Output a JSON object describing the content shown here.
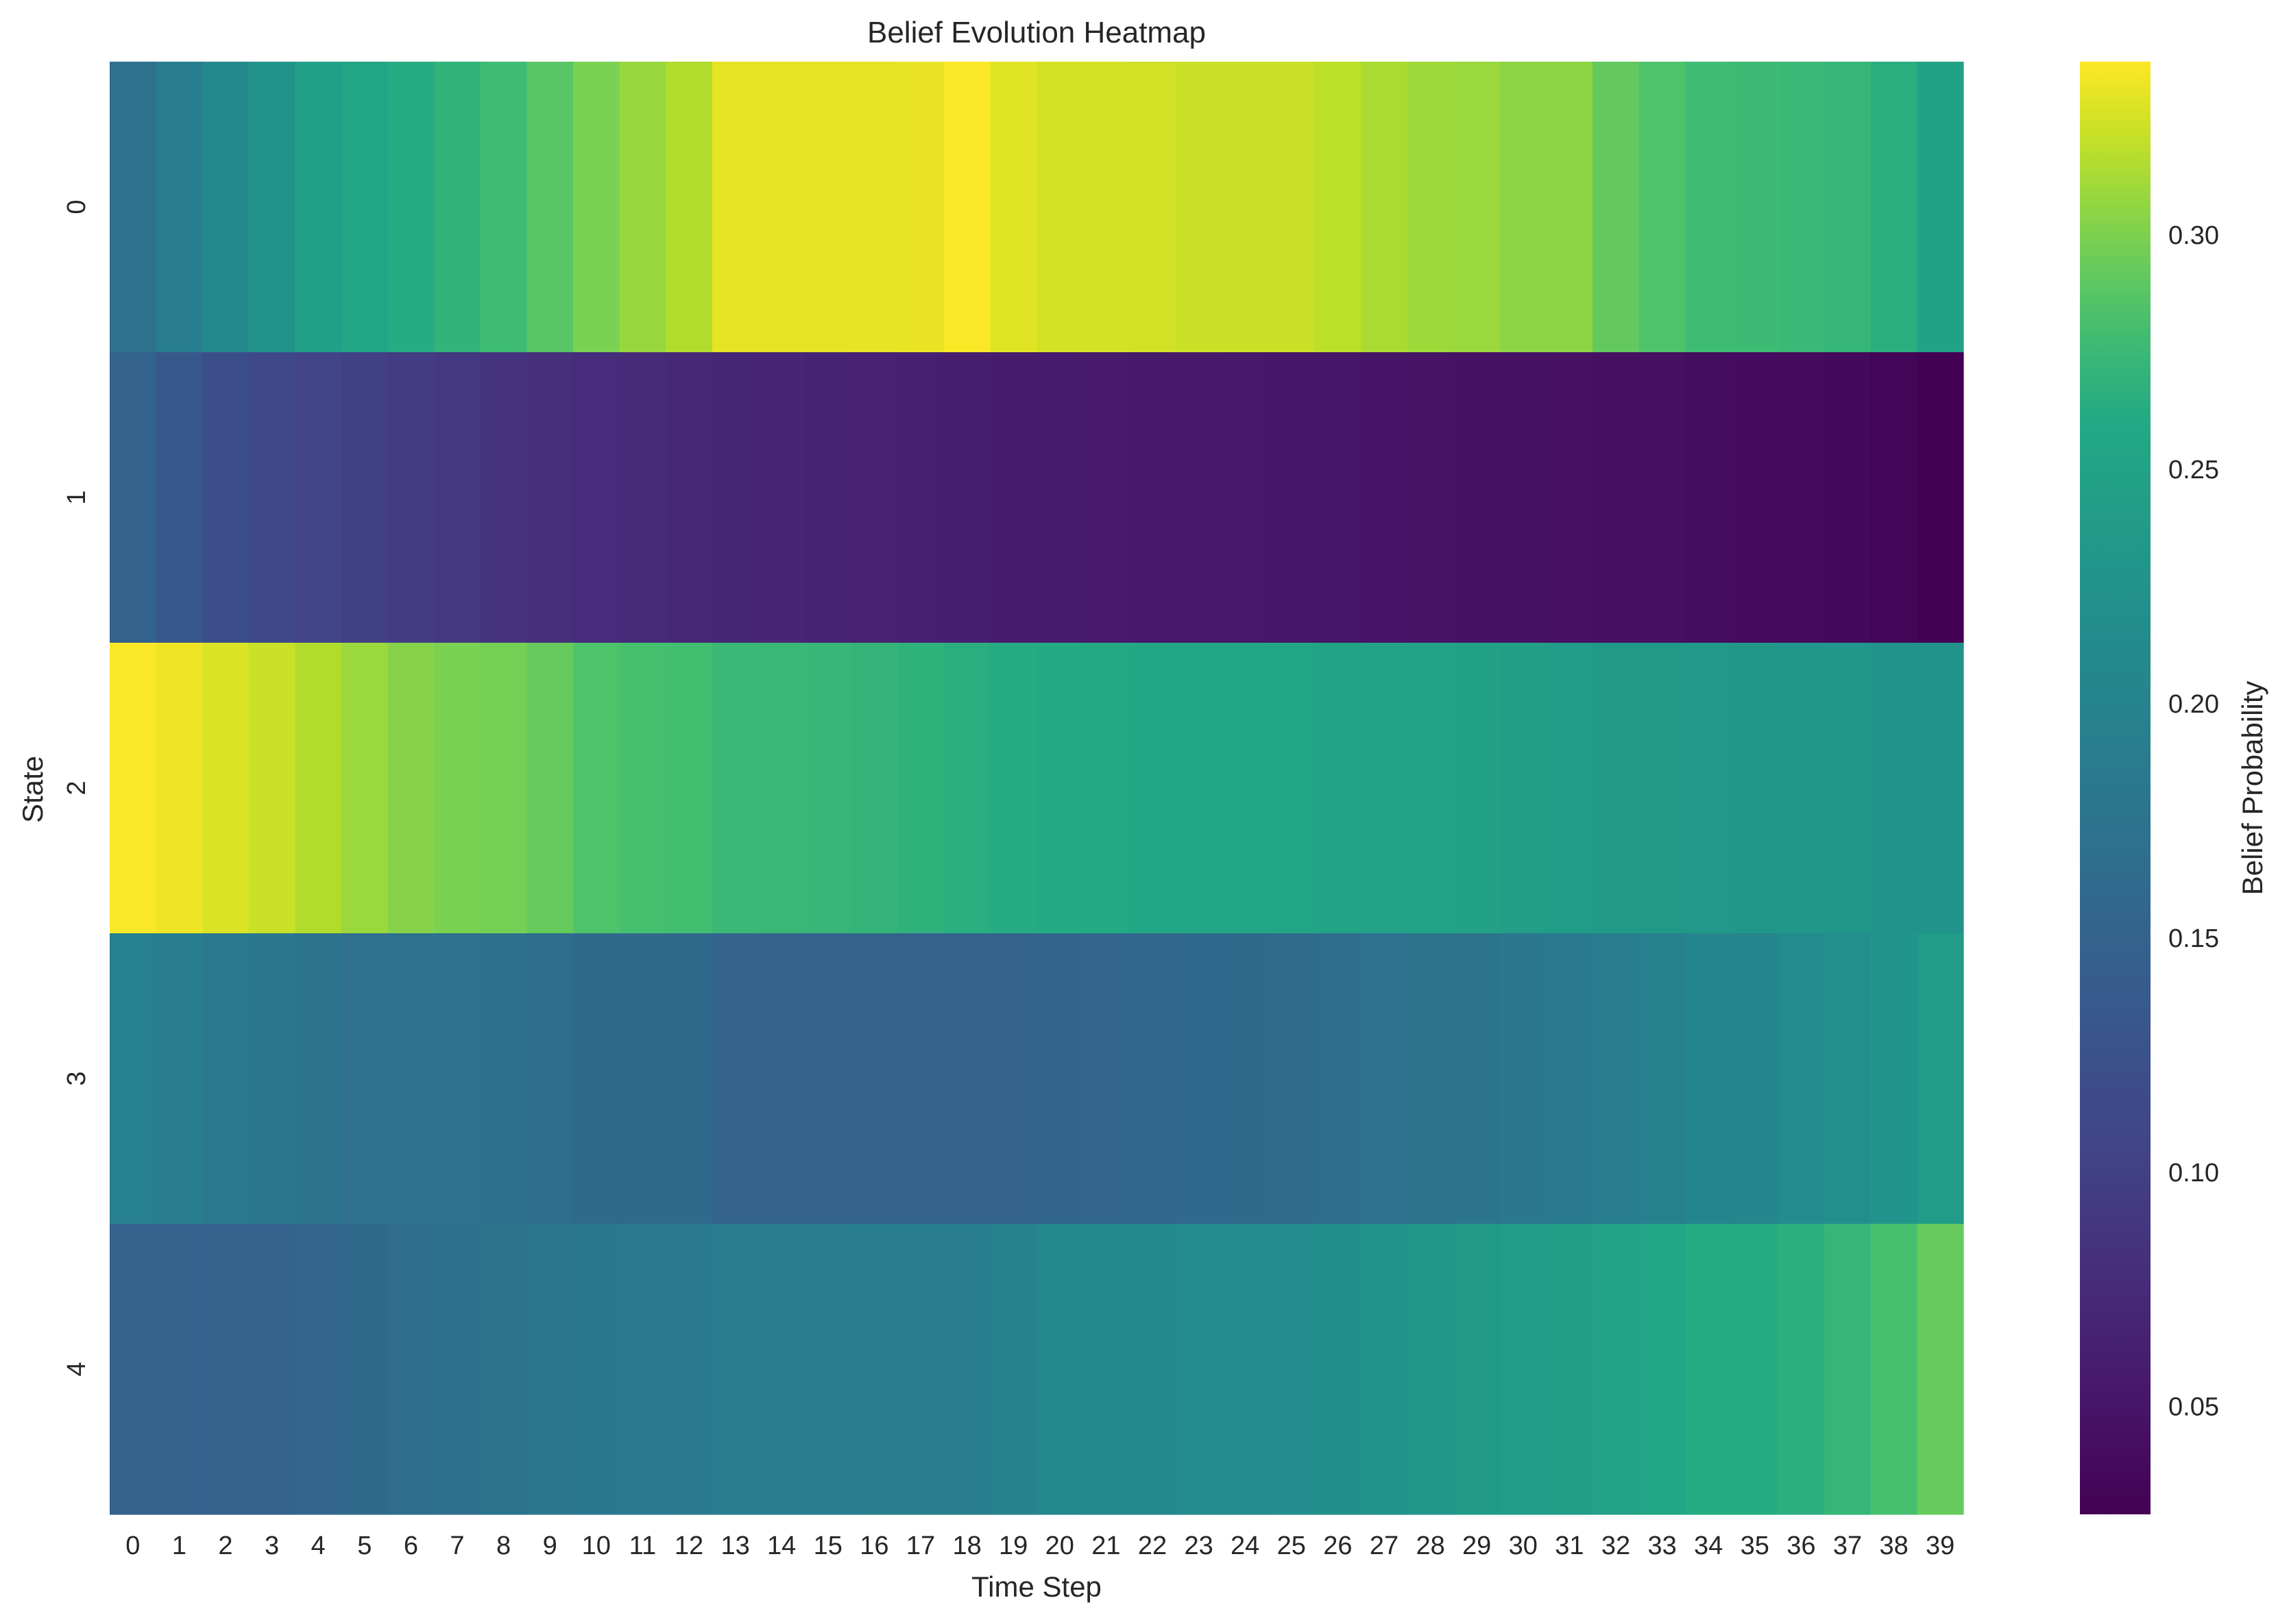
{
  "chart_data": {
    "type": "heatmap",
    "title": "Belief Evolution Heatmap",
    "xlabel": "Time Step",
    "ylabel": "State",
    "x_categories": [
      "0",
      "1",
      "2",
      "3",
      "4",
      "5",
      "6",
      "7",
      "8",
      "9",
      "10",
      "11",
      "12",
      "13",
      "14",
      "15",
      "16",
      "17",
      "18",
      "19",
      "20",
      "21",
      "22",
      "23",
      "24",
      "25",
      "26",
      "27",
      "28",
      "29",
      "30",
      "31",
      "32",
      "33",
      "34",
      "35",
      "36",
      "37",
      "38",
      "39"
    ],
    "y_categories": [
      "0",
      "1",
      "2",
      "3",
      "4"
    ],
    "colormap": "viridis",
    "colorbar": {
      "label": "Belief Probability",
      "vmin": 0.027,
      "vmax": 0.337,
      "ticks": [
        0.05,
        0.1,
        0.15,
        0.2,
        0.25,
        0.3
      ],
      "tick_labels": [
        "0.05",
        "0.10",
        "0.15",
        "0.20",
        "0.25",
        "0.30"
      ]
    },
    "values": [
      [
        0.17,
        0.19,
        0.21,
        0.225,
        0.245,
        0.255,
        0.262,
        0.27,
        0.278,
        0.288,
        0.3,
        0.308,
        0.315,
        0.33,
        0.33,
        0.33,
        0.33,
        0.331,
        0.336,
        0.329,
        0.325,
        0.325,
        0.324,
        0.322,
        0.322,
        0.322,
        0.318,
        0.313,
        0.31,
        0.309,
        0.305,
        0.305,
        0.292,
        0.285,
        0.278,
        0.277,
        0.275,
        0.272,
        0.265,
        0.248
      ],
      [
        0.15,
        0.135,
        0.12,
        0.11,
        0.105,
        0.1,
        0.095,
        0.09,
        0.085,
        0.08,
        0.077,
        0.075,
        0.072,
        0.07,
        0.068,
        0.066,
        0.064,
        0.062,
        0.06,
        0.058,
        0.057,
        0.056,
        0.055,
        0.054,
        0.053,
        0.052,
        0.051,
        0.049,
        0.048,
        0.047,
        0.046,
        0.045,
        0.044,
        0.043,
        0.041,
        0.039,
        0.038,
        0.036,
        0.032,
        0.027
      ],
      [
        0.336,
        0.333,
        0.327,
        0.322,
        0.315,
        0.309,
        0.303,
        0.3,
        0.298,
        0.293,
        0.285,
        0.282,
        0.28,
        0.275,
        0.274,
        0.273,
        0.271,
        0.268,
        0.265,
        0.262,
        0.261,
        0.26,
        0.258,
        0.256,
        0.256,
        0.254,
        0.252,
        0.25,
        0.25,
        0.248,
        0.244,
        0.24,
        0.236,
        0.235,
        0.233,
        0.232,
        0.231,
        0.23,
        0.226,
        0.225
      ],
      [
        0.195,
        0.192,
        0.183,
        0.18,
        0.175,
        0.17,
        0.17,
        0.17,
        0.168,
        0.165,
        0.16,
        0.16,
        0.16,
        0.15,
        0.15,
        0.15,
        0.15,
        0.15,
        0.15,
        0.151,
        0.154,
        0.155,
        0.156,
        0.158,
        0.159,
        0.162,
        0.166,
        0.172,
        0.175,
        0.176,
        0.18,
        0.185,
        0.19,
        0.196,
        0.203,
        0.205,
        0.212,
        0.221,
        0.228,
        0.24
      ],
      [
        0.15,
        0.15,
        0.15,
        0.15,
        0.155,
        0.16,
        0.164,
        0.168,
        0.175,
        0.18,
        0.182,
        0.184,
        0.186,
        0.188,
        0.189,
        0.19,
        0.191,
        0.192,
        0.192,
        0.2,
        0.207,
        0.209,
        0.21,
        0.212,
        0.212,
        0.214,
        0.218,
        0.225,
        0.23,
        0.235,
        0.24,
        0.242,
        0.25,
        0.257,
        0.262,
        0.262,
        0.266,
        0.272,
        0.282,
        0.293
      ]
    ]
  }
}
